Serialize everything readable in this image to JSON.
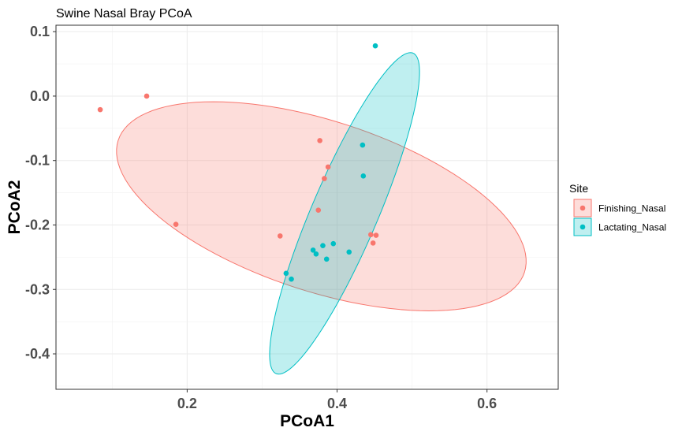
{
  "chart_data": {
    "type": "scatter",
    "title": "Swine Nasal Bray PCoA",
    "xlabel": "PCoA1",
    "ylabel": "PCoA2",
    "xlim": [
      0.025,
      0.695
    ],
    "ylim": [
      -0.455,
      0.11
    ],
    "xticks": [
      0.2,
      0.4,
      0.6
    ],
    "xtick_labels": [
      "0.2",
      "0.4",
      "0.6"
    ],
    "yticks": [
      0.1,
      0.0,
      -0.1,
      -0.2,
      -0.3,
      -0.4
    ],
    "ytick_labels": [
      "0.1",
      "0.0",
      "-0.1",
      "-0.2",
      "-0.3",
      "-0.4"
    ],
    "grid": true,
    "legend": {
      "title": "Site",
      "position": "right"
    },
    "series": [
      {
        "name": "Finishing_Nasal",
        "color": "#F8766D",
        "points": [
          {
            "x": 0.084,
            "y": -0.021
          },
          {
            "x": 0.146,
            "y": 0.0
          },
          {
            "x": 0.185,
            "y": -0.199
          },
          {
            "x": 0.324,
            "y": -0.217
          },
          {
            "x": 0.375,
            "y": -0.177
          },
          {
            "x": 0.377,
            "y": -0.069
          },
          {
            "x": 0.383,
            "y": -0.128
          },
          {
            "x": 0.388,
            "y": -0.11
          },
          {
            "x": 0.445,
            "y": -0.215
          },
          {
            "x": 0.448,
            "y": -0.228
          },
          {
            "x": 0.452,
            "y": -0.216
          }
        ],
        "ellipse": {
          "center": [
            0.379,
            -0.171
          ],
          "semi_axes": [
            0.29,
            0.13
          ],
          "angle_deg": -22
        }
      },
      {
        "name": "Lactating_Nasal",
        "color": "#00BFC4",
        "points": [
          {
            "x": 0.332,
            "y": -0.275
          },
          {
            "x": 0.339,
            "y": -0.284
          },
          {
            "x": 0.368,
            "y": -0.239
          },
          {
            "x": 0.372,
            "y": -0.245
          },
          {
            "x": 0.381,
            "y": -0.232
          },
          {
            "x": 0.386,
            "y": -0.253
          },
          {
            "x": 0.395,
            "y": -0.229
          },
          {
            "x": 0.416,
            "y": -0.242
          },
          {
            "x": 0.434,
            "y": -0.076
          },
          {
            "x": 0.435,
            "y": -0.124
          },
          {
            "x": 0.451,
            "y": 0.078
          }
        ],
        "ellipse": {
          "center": [
            0.41,
            -0.182
          ],
          "semi_axes": [
            0.265,
            0.045
          ],
          "angle_deg": 70
        }
      }
    ]
  }
}
